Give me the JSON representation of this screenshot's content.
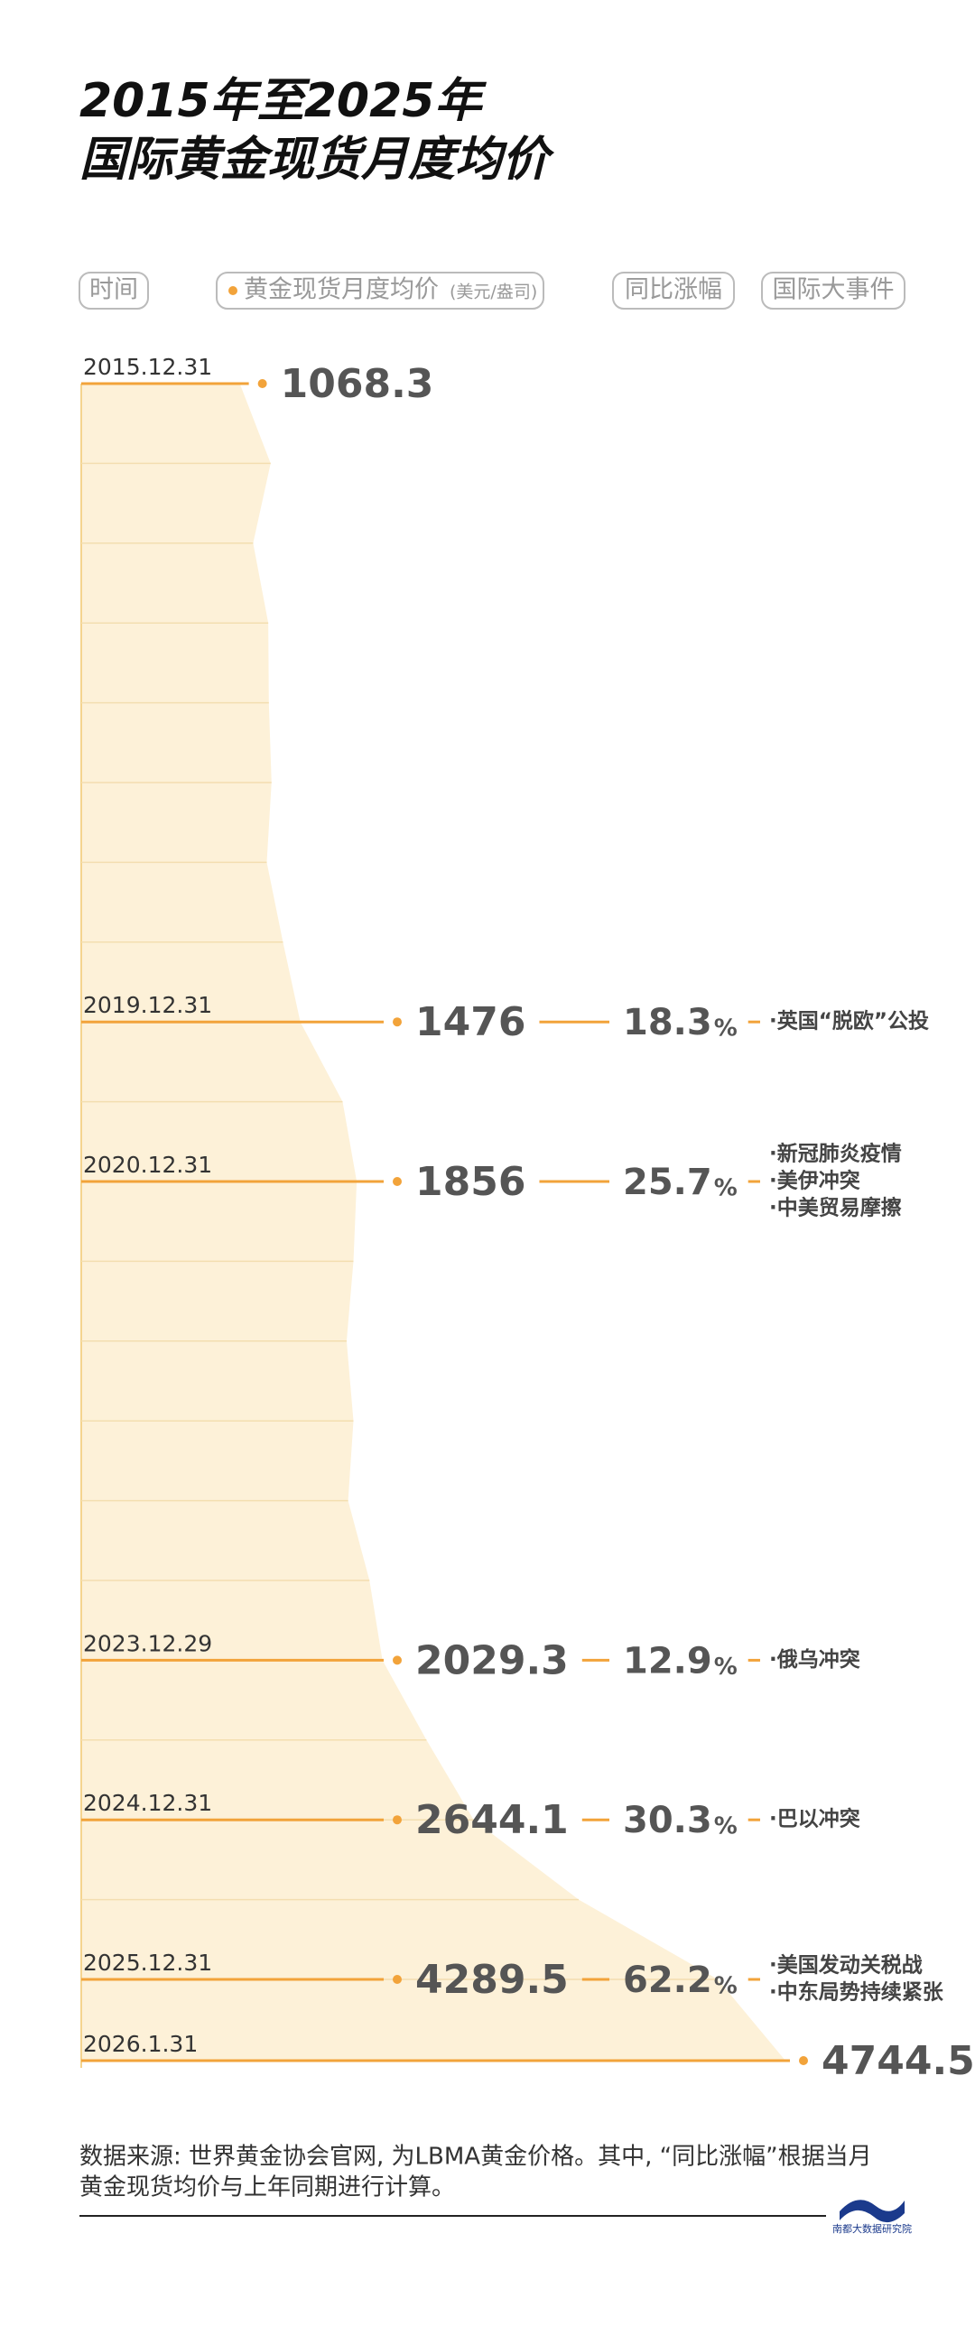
{
  "chart_data": {
    "type": "area",
    "title": [
      "2015年至2025年",
      "国际黄金现货月度均价"
    ],
    "column_headers": [
      "时间",
      "黄金现货月度均价",
      "同比涨幅",
      "国际大事件"
    ],
    "price_unit": "(美元/盎司)",
    "yoy_unit": "%",
    "color": "#f2a33a",
    "area_color": "#fdf1d8",
    "grid": true,
    "categories": [
      "2015.12.31",
      null,
      null,
      null,
      null,
      null,
      null,
      null,
      "2019.12.31",
      null,
      "2020.12.31",
      null,
      null,
      null,
      null,
      null,
      "2023.12.29",
      null,
      "2024.12.31",
      null,
      "2025.12.31",
      "2026.1.31"
    ],
    "values": [
      1068.3,
      1276,
      1158,
      1260,
      1264,
      1282,
      1250,
      1359,
      1476,
      1761,
      1856,
      1834,
      1788,
      1834,
      1798,
      1942,
      2029.3,
      2326,
      2644.1,
      3352,
      4289.5,
      4744.5
    ],
    "labeled": [
      0,
      8,
      10,
      16,
      18,
      20,
      21
    ],
    "yoy": [
      null,
      null,
      null,
      null,
      null,
      null,
      null,
      null,
      18.3,
      null,
      25.7,
      null,
      null,
      null,
      null,
      null,
      12.9,
      null,
      30.3,
      null,
      62.2,
      null
    ],
    "events": [
      null,
      null,
      null,
      null,
      null,
      null,
      null,
      null,
      [
        "·英国“脱欧”公投"
      ],
      null,
      [
        "·新冠肺炎疫情",
        "·美伊冲突",
        "·中美贸易摩擦"
      ],
      null,
      null,
      null,
      null,
      null,
      [
        "·俄乌冲突"
      ],
      null,
      [
        "·巴以冲突"
      ],
      null,
      [
        "·美国发动关税战",
        "·中东局势持续紧张"
      ],
      null
    ],
    "note": [
      "数据来源: 世界黄金协会官网, 为LBMA黄金价格。其中, “同比涨幅”根据当月",
      "黄金现货均价与上年同期进行计算。"
    ],
    "brand": "南都大数据研究院"
  }
}
